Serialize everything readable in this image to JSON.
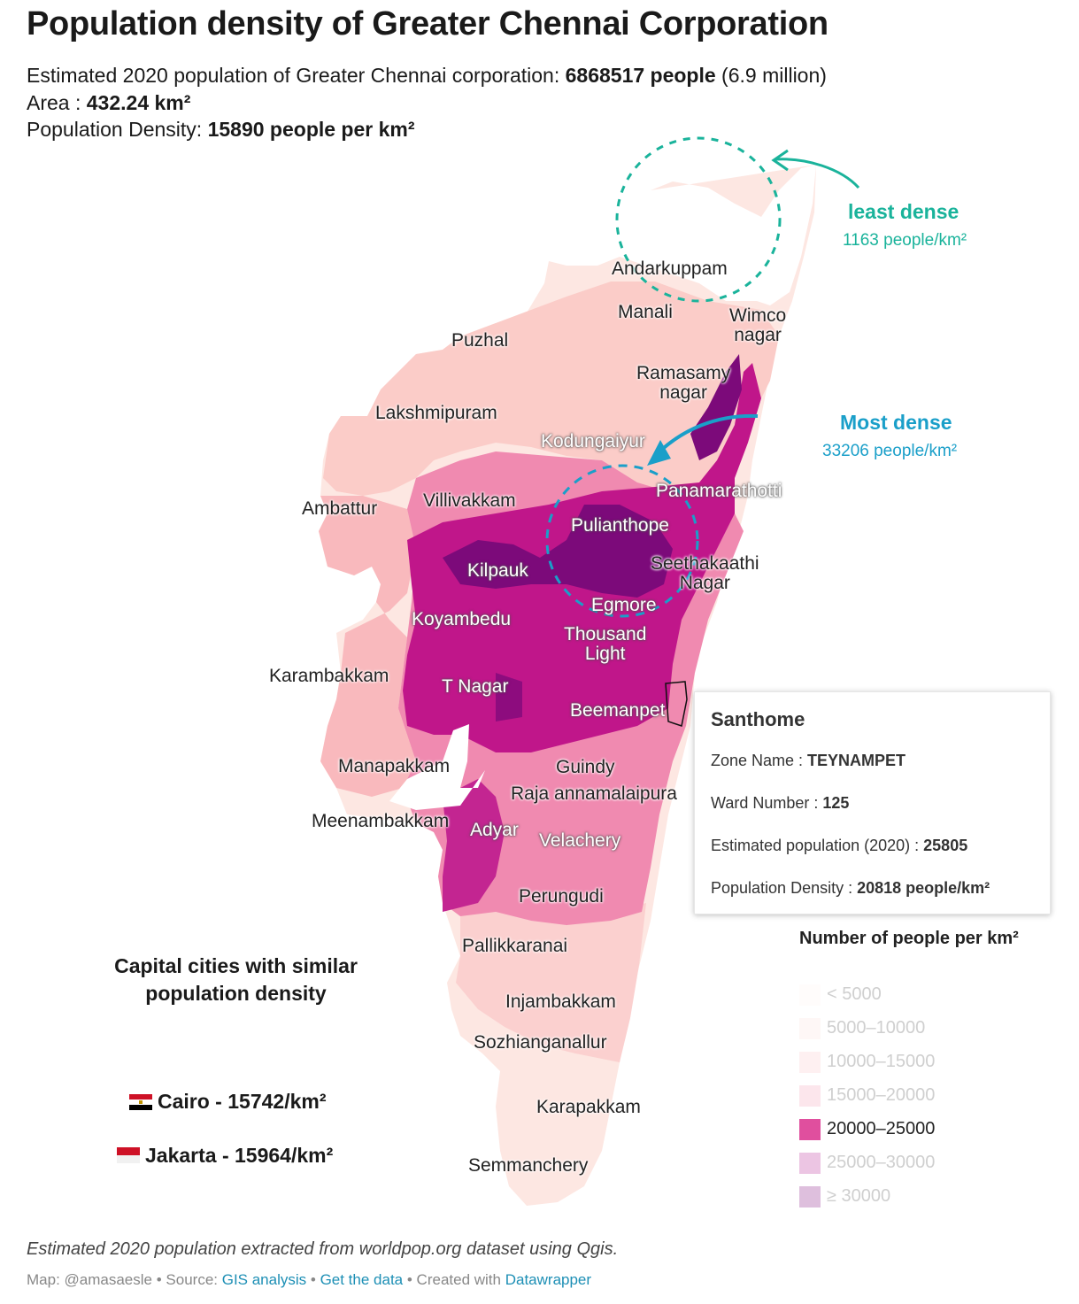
{
  "header": {
    "title": "Population density of Greater Chennai Corporation",
    "line1_prefix": "Estimated 2020 population of Greater Chennai corporation: ",
    "line1_value": "6868517 people",
    "line1_suffix": " (6.9 million)",
    "line2_prefix": "Area : ",
    "line2_value": "432.24 km²",
    "line3_prefix": "Population Density: ",
    "line3_value": "15890 people per km²"
  },
  "places": [
    {
      "id": "andarkuppam",
      "name": "Andarkuppam"
    },
    {
      "id": "manali",
      "name": "Manali"
    },
    {
      "id": "wimco",
      "name": "Wimco\nnagar"
    },
    {
      "id": "puzhal",
      "name": "Puzhal"
    },
    {
      "id": "ramasamy",
      "name": "Ramasamy\nnagar"
    },
    {
      "id": "lakshmipuram",
      "name": "Lakshmipuram"
    },
    {
      "id": "kodungaiyur",
      "name": "Kodungaiyur"
    },
    {
      "id": "panamarathotti",
      "name": "Panamarathotti"
    },
    {
      "id": "ambattur",
      "name": "Ambattur"
    },
    {
      "id": "villivakkam",
      "name": "Villivakkam"
    },
    {
      "id": "pulianthope",
      "name": "Pulianthope"
    },
    {
      "id": "seethakaathi",
      "name": "Seethakaathi\nNagar"
    },
    {
      "id": "kilpauk",
      "name": "Kilpauk"
    },
    {
      "id": "egmore",
      "name": "Egmore"
    },
    {
      "id": "koyambedu",
      "name": "Koyambedu"
    },
    {
      "id": "thousandlight",
      "name": "Thousand\nLight"
    },
    {
      "id": "karambakkam",
      "name": "Karambakkam"
    },
    {
      "id": "tnagar",
      "name": "T Nagar"
    },
    {
      "id": "beemanpet",
      "name": "Beemanpet"
    },
    {
      "id": "manapakkam",
      "name": "Manapakkam"
    },
    {
      "id": "guindy",
      "name": "Guindy"
    },
    {
      "id": "rajaannamalai",
      "name": "Raja annamalaipura"
    },
    {
      "id": "meenambakkam",
      "name": "Meenambakkam"
    },
    {
      "id": "adyar",
      "name": "Adyar"
    },
    {
      "id": "velachery",
      "name": "Velachery"
    },
    {
      "id": "perungudi",
      "name": "Perungudi"
    },
    {
      "id": "pallikkaranai",
      "name": "Pallikkaranai"
    },
    {
      "id": "injambakkam",
      "name": "Injambakkam"
    },
    {
      "id": "sozhianganallur",
      "name": "Sozhianganallur"
    },
    {
      "id": "karapakkam",
      "name": "Karapakkam"
    },
    {
      "id": "semmanchery",
      "name": "Semmanchery"
    }
  ],
  "annotations": {
    "least": {
      "label": "least dense",
      "value": "1163 people/km²",
      "color": "#1ab39b"
    },
    "most": {
      "label": "Most dense",
      "value": "33206 people/km²",
      "color": "#1a9fc9"
    }
  },
  "tooltip": {
    "title": "Santhome",
    "zone_label": "Zone Name : ",
    "zone_value": "TEYNAMPET",
    "ward_label": "Ward Number : ",
    "ward_value": "125",
    "pop_label": "Estimated population (2020) : ",
    "pop_value": "25805",
    "density_label": "Population Density : ",
    "density_value": "20818 people/km²"
  },
  "legend": {
    "title": "Number of people per km²",
    "items": [
      {
        "label": "< 5000",
        "color": "#fff3ee",
        "active": false
      },
      {
        "label": "5000–10000",
        "color": "#fde0dd",
        "active": false
      },
      {
        "label": "10000–15000",
        "color": "#fbc3c8",
        "active": false
      },
      {
        "label": "15000–20000",
        "color": "#f59ab5",
        "active": false
      },
      {
        "label": "20000–25000",
        "color": "#e04f9e",
        "active": true
      },
      {
        "label": "25000–30000",
        "color": "#b5178e",
        "active": false
      },
      {
        "label": "≥ 30000",
        "color": "#7a0177",
        "active": false
      }
    ]
  },
  "capitals": {
    "title": "Capital cities with similar population density",
    "cities": [
      {
        "name": "Cairo - 15742/km²",
        "flag": "egypt-flag"
      },
      {
        "name": "Jakarta - 15964/km²",
        "flag": "indonesia-flag"
      }
    ]
  },
  "footer": {
    "note": "Estimated 2020 population extracted from worldpop.org dataset using Qgis.",
    "map_credit": "Map: @amasaesle",
    "sep": " • ",
    "source_label": "Source: ",
    "source_link": "GIS analysis",
    "data_link": "Get the data",
    "created_label": "Created with ",
    "created_link": "Datawrapper"
  }
}
